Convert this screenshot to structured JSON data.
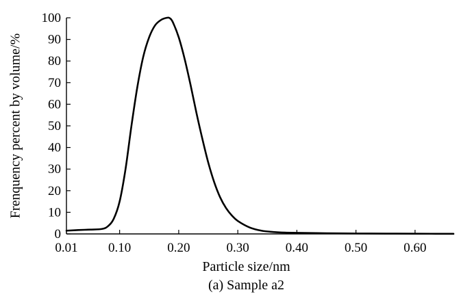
{
  "chart_data": {
    "type": "line",
    "caption": "(a) Sample a2",
    "xlabel": "Particle size/nm",
    "ylabel": "Frenquency percent by volume/%",
    "xlim": [
      0.01,
      0.665
    ],
    "ylim": [
      0,
      100
    ],
    "x_ticks": [
      0.01,
      0.1,
      0.2,
      0.3,
      0.4,
      0.5,
      0.6
    ],
    "x_tick_labels": [
      "0.01",
      "0.10",
      "0.20",
      "0.30",
      "0.40",
      "0.50",
      "0.60"
    ],
    "y_ticks": [
      0,
      10,
      20,
      30,
      40,
      50,
      60,
      70,
      80,
      90,
      100
    ],
    "y_tick_labels": [
      "0",
      "10",
      "20",
      "30",
      "40",
      "50",
      "60",
      "70",
      "80",
      "90",
      "100"
    ],
    "grid": false,
    "line_color": "#000000",
    "series": [
      {
        "x": [
          0.01,
          0.03,
          0.05,
          0.07,
          0.08,
          0.09,
          0.1,
          0.11,
          0.12,
          0.13,
          0.14,
          0.15,
          0.16,
          0.17,
          0.18,
          0.185,
          0.19,
          0.2,
          0.21,
          0.22,
          0.23,
          0.24,
          0.25,
          0.26,
          0.27,
          0.28,
          0.29,
          0.3,
          0.32,
          0.34,
          0.36,
          0.38,
          0.4,
          0.45,
          0.5,
          0.55,
          0.6,
          0.665
        ],
        "y": [
          1.5,
          1.8,
          2.0,
          2.3,
          3.5,
          7.0,
          15.0,
          30.0,
          50.0,
          68.0,
          82.0,
          91.0,
          96.5,
          99.0,
          100.0,
          99.8,
          98.0,
          91.0,
          81.0,
          69.0,
          56.0,
          44.0,
          33.0,
          24.0,
          17.0,
          12.0,
          8.5,
          6.0,
          3.0,
          1.5,
          0.9,
          0.6,
          0.5,
          0.3,
          0.2,
          0.15,
          0.1,
          0.05
        ]
      }
    ]
  }
}
